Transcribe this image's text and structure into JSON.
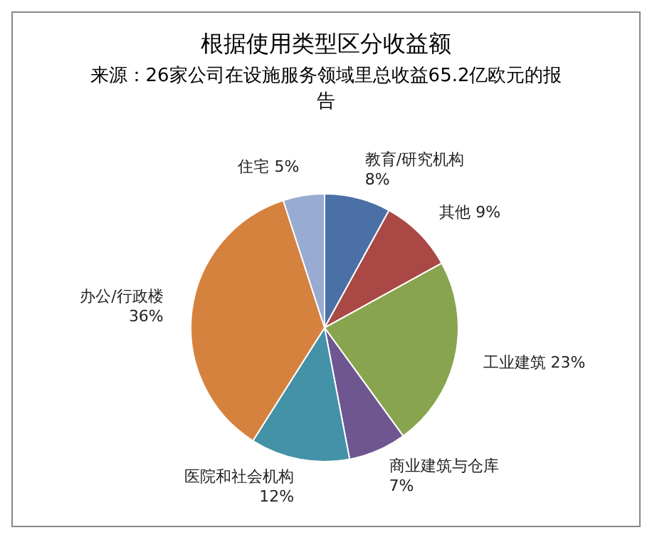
{
  "chart_data": {
    "type": "pie",
    "title": "根据使用类型区分收益额",
    "subtitle": "来源：26家公司在设施服务领域里总收益65.2亿欧元的报告",
    "categories": [
      "教育/研究机构",
      "其他",
      "工业建筑",
      "商业建筑与仓库",
      "医院和社会机构",
      "办公/行政楼",
      "住宅"
    ],
    "values": [
      8,
      9,
      23,
      7,
      12,
      36,
      5
    ],
    "value_labels": [
      "8%",
      "9%",
      "23%",
      "7%",
      "12%",
      "36%",
      "5%"
    ],
    "colors": [
      "#4a70a6",
      "#a94845",
      "#88a44f",
      "#6e5690",
      "#4392a7",
      "#d6823f",
      "#98abd0"
    ],
    "legend": false
  }
}
